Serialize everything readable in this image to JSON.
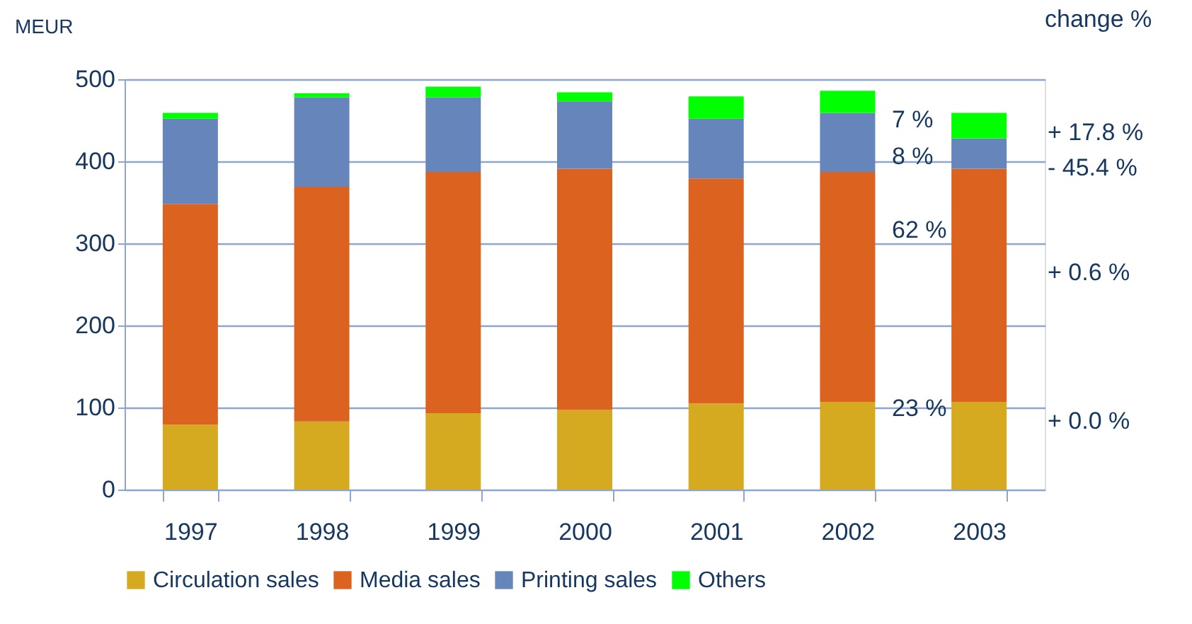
{
  "chart_data": {
    "type": "bar",
    "stacked": true,
    "ylabel": "MEUR",
    "categories": [
      "1997",
      "1998",
      "1999",
      "2000",
      "2001",
      "2002",
      "2003"
    ],
    "series": [
      {
        "name": "Circulation sales",
        "color": "#d6aa20",
        "values": [
          79,
          83,
          93,
          97,
          105,
          107,
          107
        ]
      },
      {
        "name": "Media sales",
        "color": "#dc621f",
        "values": [
          269,
          286,
          294,
          294,
          274,
          280,
          284
        ]
      },
      {
        "name": "Printing sales",
        "color": "#6685bb",
        "values": [
          104,
          109,
          91,
          82,
          73,
          72,
          37
        ]
      },
      {
        "name": "Others",
        "color": "#00ff00",
        "values": [
          7,
          5,
          13,
          11,
          27,
          27,
          31
        ]
      }
    ],
    "ylim": [
      0,
      500
    ],
    "yticks": [
      0,
      100,
      200,
      300,
      400,
      500
    ],
    "grid": "y",
    "legend": "bottom",
    "annotations": [
      "change %",
      "7 %",
      "8 %",
      "62 %",
      "23 %",
      "+ 17.8 %",
      "-  45.4 %",
      "+  0.6 %",
      "+  0.0 %"
    ]
  }
}
